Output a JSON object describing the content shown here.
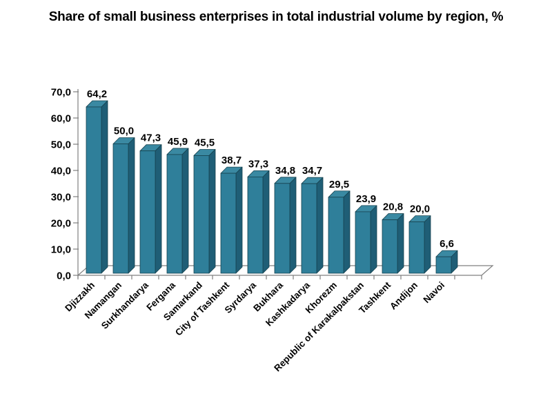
{
  "chart_data": {
    "type": "bar",
    "style": "3d-column",
    "title": "Share of small business enterprises in total industrial volume by region, %",
    "categories": [
      "Djizzakh",
      "Namangan",
      "Surkhandarya",
      "Fergana",
      "Samarkand",
      "City of Tashkent",
      "Syrdarya",
      "Bukhara",
      "Kashkadarya",
      "Khorezm",
      "Republic of Karakalpakstan",
      "Tashkent",
      "Andijon",
      "Navoi"
    ],
    "values": [
      64.2,
      50.0,
      47.3,
      45.9,
      45.5,
      38.7,
      37.3,
      34.8,
      34.7,
      29.5,
      23.9,
      20.8,
      20.0,
      6.6
    ],
    "value_labels": [
      "64,2",
      "50,0",
      "47,3",
      "45,9",
      "45,5",
      "38,7",
      "37,3",
      "34,8",
      "34,7",
      "29,5",
      "23,9",
      "20,8",
      "20,0",
      "6,6"
    ],
    "xlabel": "",
    "ylabel": "",
    "ylim": [
      0,
      70
    ],
    "ytick_step": 10,
    "ytick_labels": [
      "0,0",
      "10,0",
      "20,0",
      "30,0",
      "40,0",
      "50,0",
      "60,0",
      "70,0"
    ],
    "decimal_separator": ",",
    "grid": false,
    "legend": "none",
    "colors": {
      "bar_front": "#2f7f9a",
      "bar_top": "#3a89a2",
      "bar_side": "#1f5e76",
      "bar_outline": "#16424f",
      "axis_line": "#7f7f7f",
      "text": "#000000",
      "background": "#ffffff"
    }
  }
}
